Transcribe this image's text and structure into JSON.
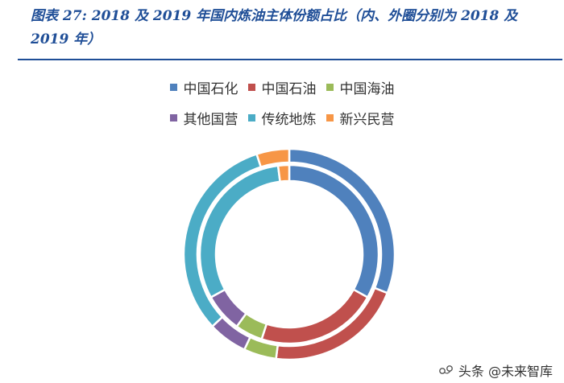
{
  "figure": {
    "title": "图表 27: 2018 及 2019 年国内炼油主体份额占比（内、外圈分别为 2018 及 2019 年）"
  },
  "chart_data": {
    "type": "pie",
    "style": "double-donut",
    "inner_ring": "2018",
    "outer_ring": "2019",
    "categories": [
      "中国石化",
      "中国石油",
      "中国海油",
      "其他国营",
      "传统地炼",
      "新兴民营"
    ],
    "colors": [
      "#4f81bd",
      "#c0504d",
      "#9bbb59",
      "#8064a2",
      "#4bacc6",
      "#f79646"
    ],
    "series": [
      {
        "values": [
          33,
          22,
          5,
          7,
          31,
          2
        ]
      },
      {
        "values": [
          31,
          21,
          5,
          6,
          32,
          5
        ]
      }
    ]
  },
  "watermark": {
    "text": "头条 @未来智库"
  }
}
